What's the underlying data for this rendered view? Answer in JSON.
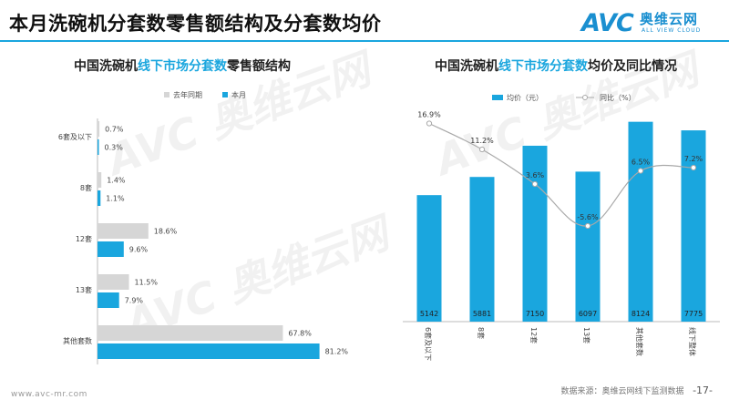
{
  "page": {
    "title": "本月洗碗机分套数零售额结构及分套数均价",
    "logo_mark": "AVC",
    "logo_cn": "奥维云网",
    "logo_en": "ALL VIEW CLOUD",
    "watermark_text": "AVC 奥维云网",
    "footer_left": "www.avc-mr.com",
    "footer_source": "数据来源：奥维云网线下监测数据",
    "footer_page": "-17-",
    "brand_color": "#1aa6de"
  },
  "chart_data": [
    {
      "type": "bar",
      "orientation": "horizontal",
      "title": {
        "prefix": "中国洗碗机",
        "highlight": "线下市场分套数",
        "suffix": "零售额结构"
      },
      "categories": [
        "6套及以下",
        "8套",
        "12套",
        "13套",
        "其他套数"
      ],
      "series": [
        {
          "name": "去年同期",
          "values": [
            0.7,
            1.4,
            18.6,
            11.5,
            67.8
          ],
          "color": "#d6d6d6"
        },
        {
          "name": "本月",
          "values": [
            0.3,
            1.1,
            9.6,
            7.9,
            81.2
          ],
          "color": "#1aa6de"
        }
      ],
      "value_labels": [
        [
          "0.7%",
          "1.4%",
          "18.6%",
          "11.5%",
          "67.8%"
        ],
        [
          "0.3%",
          "1.1%",
          "9.6%",
          "7.9%",
          "81.2%"
        ]
      ],
      "xlim": [
        0,
        100
      ],
      "legend_position": "top"
    },
    {
      "type": "bar+line",
      "title": {
        "prefix": "中国洗碗机",
        "highlight": "线下市场分套数",
        "suffix": "均价及同比情况"
      },
      "categories": [
        "6套及以下",
        "8套",
        "12套",
        "13套",
        "其他套数",
        "线下整体"
      ],
      "bars": {
        "name": "均价（元）",
        "values": [
          5142,
          5881,
          7150,
          6097,
          8124,
          7775
        ],
        "color": "#1aa6de"
      },
      "line": {
        "name": "同比（%）",
        "values": [
          16.9,
          11.2,
          3.6,
          -5.6,
          6.5,
          7.2
        ],
        "labels": [
          "16.9%",
          "11.2%",
          "3.6%",
          "-5.6%",
          "6.5%",
          "7.2%"
        ],
        "color": "#a9a9a9"
      },
      "bar_ylim": [
        0,
        9000
      ],
      "line_ylim": [
        -8,
        20
      ],
      "legend_position": "top"
    }
  ]
}
